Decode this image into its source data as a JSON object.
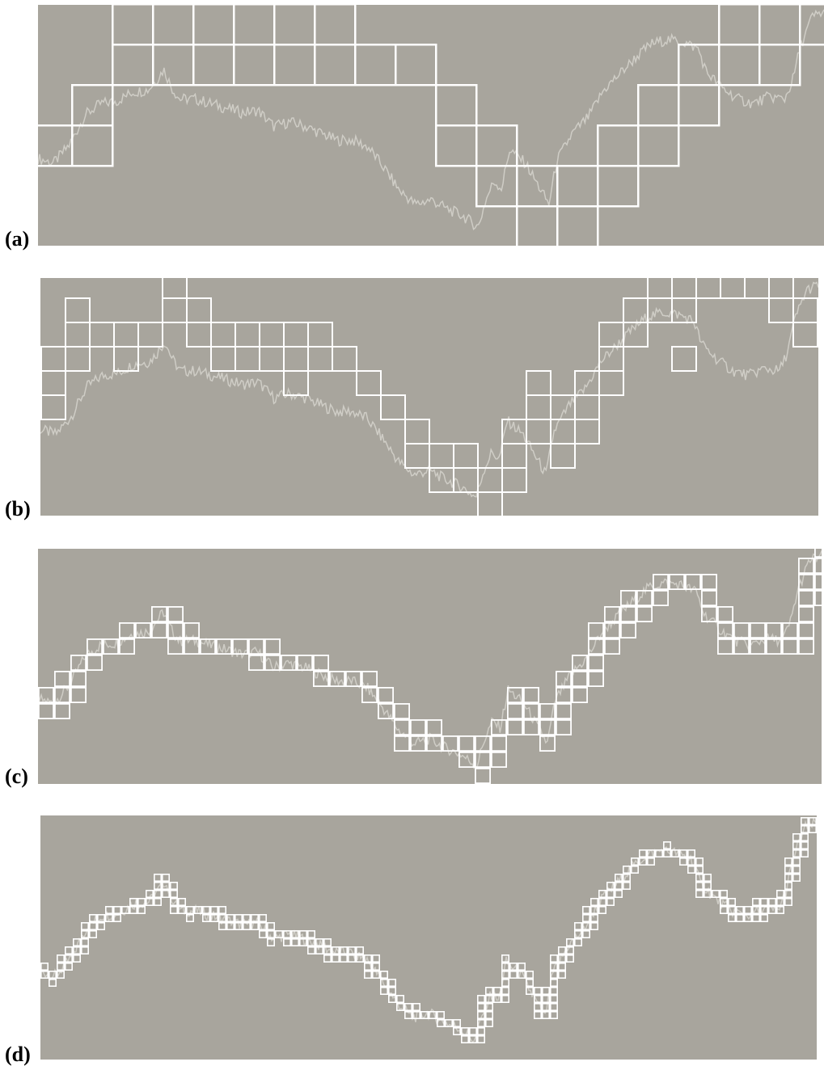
{
  "figure": {
    "background_color": "#a8a59d",
    "box_color": "#ffffff",
    "trace_color": "#cfcdc6"
  },
  "panels": [
    {
      "label": "(a)",
      "cell_size": 50,
      "columns": [
        [
          2
        ],
        [
          2,
          3
        ],
        [
          4,
          5
        ],
        [
          4,
          5
        ],
        [
          4,
          5,
          6
        ],
        [
          4,
          5
        ],
        [
          4,
          5
        ],
        [
          4,
          5
        ],
        [
          4
        ],
        [
          4
        ],
        [
          2,
          3
        ],
        [
          1,
          2
        ],
        [
          0,
          1
        ],
        [
          0,
          1
        ],
        [
          1,
          2
        ],
        [
          2,
          3
        ],
        [
          3,
          4
        ],
        [
          4,
          5
        ],
        [
          4,
          5
        ],
        [
          5
        ],
        [
          4,
          5
        ],
        [
          4,
          5
        ],
        [
          5
        ]
      ]
    },
    {
      "label": "(b)",
      "cell_size": 30,
      "columns": [
        [
          4,
          5,
          6
        ],
        [
          6,
          7,
          8
        ],
        [
          7
        ],
        [
          6,
          7
        ],
        [
          7
        ],
        [
          8,
          9
        ],
        [
          8,
          7
        ],
        [
          7,
          6
        ],
        [
          7,
          6
        ],
        [
          7,
          6
        ],
        [
          7,
          6,
          5
        ],
        [
          7,
          6
        ],
        [
          6
        ],
        [
          5
        ],
        [
          4
        ],
        [
          3,
          2
        ],
        [
          2,
          1
        ],
        [
          2,
          1
        ],
        [
          1,
          0
        ],
        [
          2,
          1,
          3
        ],
        [
          3,
          4,
          5
        ],
        [
          2,
          3,
          4
        ],
        [
          3,
          4,
          5
        ],
        [
          5,
          6,
          7
        ],
        [
          7,
          8
        ],
        [
          8,
          9
        ],
        [
          8,
          9,
          6
        ],
        [
          9,
          10
        ],
        [
          9,
          10
        ],
        [
          9,
          10
        ],
        [
          8,
          9
        ],
        [
          7,
          8
        ],
        [
          7,
          8
        ],
        [
          7,
          8,
          9,
          10
        ]
      ]
    },
    {
      "label": "(c)",
      "cell_size": 20
    },
    {
      "label": "(d)",
      "cell_size": 10
    }
  ]
}
